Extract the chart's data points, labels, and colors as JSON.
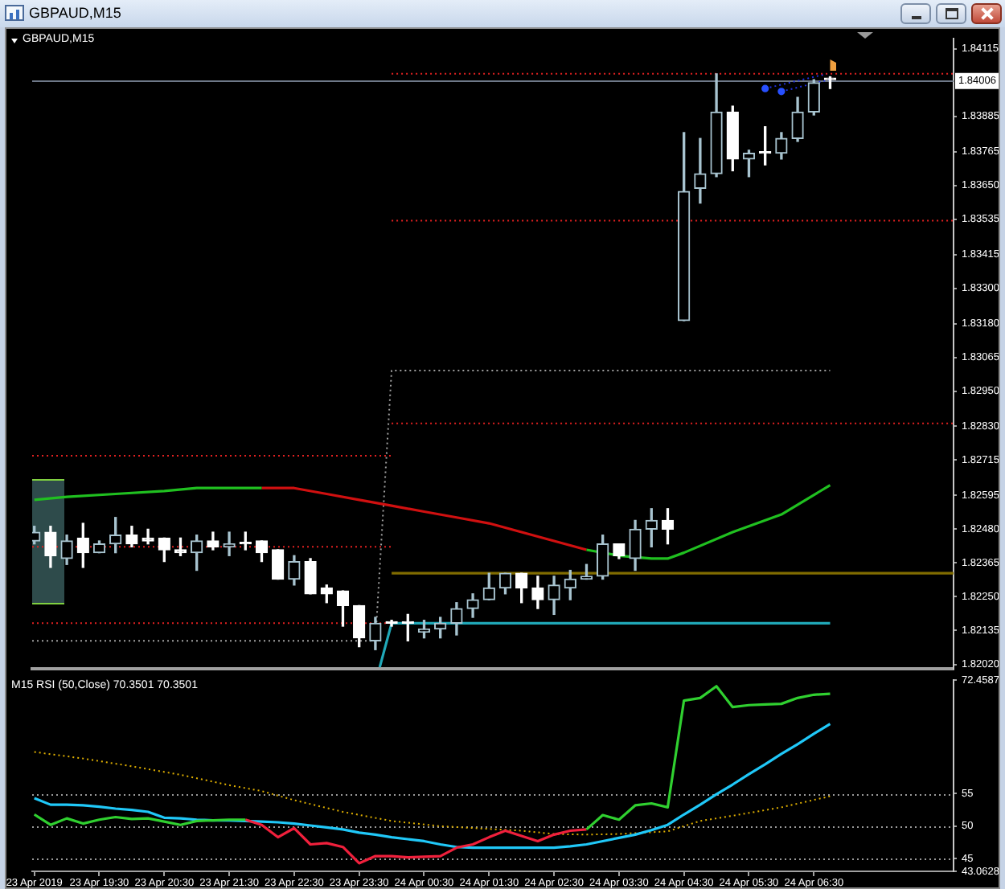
{
  "chart_data": [
    {
      "type": "candlestick",
      "title": "GBPAUD,M15",
      "subtitle": "GBPAUD,M15",
      "x": [
        "2019-04-23T18:30",
        "2019-04-23T18:45",
        "2019-04-23T19:00",
        "2019-04-23T19:15",
        "2019-04-23T19:30",
        "2019-04-23T19:45",
        "2019-04-23T20:00",
        "2019-04-23T20:15",
        "2019-04-23T20:30",
        "2019-04-23T20:45",
        "2019-04-23T21:00",
        "2019-04-23T21:15",
        "2019-04-23T21:30",
        "2019-04-23T21:45",
        "2019-04-23T22:00",
        "2019-04-23T22:15",
        "2019-04-23T22:30",
        "2019-04-23T22:45",
        "2019-04-23T23:00",
        "2019-04-23T23:15",
        "2019-04-23T23:30",
        "2019-04-23T23:45",
        "2019-04-24T00:00",
        "2019-04-24T00:15",
        "2019-04-24T00:30",
        "2019-04-24T00:45",
        "2019-04-24T01:00",
        "2019-04-24T01:15",
        "2019-04-24T01:30",
        "2019-04-24T01:45",
        "2019-04-24T02:00",
        "2019-04-24T02:15",
        "2019-04-24T02:30",
        "2019-04-24T02:45",
        "2019-04-24T03:00",
        "2019-04-24T03:15",
        "2019-04-24T03:30",
        "2019-04-24T03:45",
        "2019-04-24T04:00",
        "2019-04-24T04:15",
        "2019-04-24T04:30",
        "2019-04-24T04:45",
        "2019-04-24T05:00",
        "2019-04-24T05:15",
        "2019-04-24T05:30",
        "2019-04-24T05:45",
        "2019-04-24T06:00",
        "2019-04-24T06:15",
        "2019-04-24T06:30",
        "2019-04-24T06:45"
      ],
      "ohlc": [
        [
          1.8244,
          1.8249,
          1.8243,
          1.8247
        ],
        [
          1.8247,
          1.8249,
          1.8235,
          1.8239
        ],
        [
          1.8238,
          1.8246,
          1.8236,
          1.8244
        ],
        [
          1.8245,
          1.825,
          1.8235,
          1.824
        ],
        [
          1.824,
          1.8244,
          1.824,
          1.8243
        ],
        [
          1.8243,
          1.8252,
          1.824,
          1.8246
        ],
        [
          1.8246,
          1.8249,
          1.8242,
          1.8243
        ],
        [
          1.8245,
          1.8248,
          1.8243,
          1.8244
        ],
        [
          1.8245,
          1.8245,
          1.8237,
          1.8241
        ],
        [
          1.8241,
          1.8245,
          1.8239,
          1.824
        ],
        [
          1.824,
          1.8246,
          1.8234,
          1.8244
        ],
        [
          1.8244,
          1.8247,
          1.8241,
          1.8242
        ],
        [
          1.8242,
          1.8247,
          1.8239,
          1.8243
        ],
        [
          1.8243,
          1.8247,
          1.8241,
          1.8243
        ],
        [
          1.8244,
          1.8244,
          1.8237,
          1.824
        ],
        [
          1.8241,
          1.8241,
          1.8231,
          1.8231
        ],
        [
          1.8231,
          1.8239,
          1.8229,
          1.8237
        ],
        [
          1.8237,
          1.8238,
          1.8226,
          1.8226
        ],
        [
          1.8228,
          1.8229,
          1.8223,
          1.8226
        ],
        [
          1.8227,
          1.8227,
          1.8215,
          1.8222
        ],
        [
          1.8222,
          1.8222,
          1.8208,
          1.8211
        ],
        [
          1.821,
          1.8218,
          1.8207,
          1.8216
        ],
        [
          1.8216,
          1.8217,
          1.8215,
          1.8216
        ],
        [
          1.8216,
          1.8219,
          1.821,
          1.8216
        ],
        [
          1.8213,
          1.8217,
          1.8211,
          1.8214
        ],
        [
          1.8214,
          1.8218,
          1.8211,
          1.8216
        ],
        [
          1.8216,
          1.8223,
          1.8212,
          1.8221
        ],
        [
          1.8221,
          1.8226,
          1.8218,
          1.8224
        ],
        [
          1.8224,
          1.8233,
          1.8224,
          1.8228
        ],
        [
          1.8228,
          1.8233,
          1.8226,
          1.8233
        ],
        [
          1.8233,
          1.8233,
          1.8223,
          1.8228
        ],
        [
          1.8228,
          1.8232,
          1.8221,
          1.8224
        ],
        [
          1.8224,
          1.8232,
          1.8219,
          1.8229
        ],
        [
          1.8228,
          1.8234,
          1.8224,
          1.8231
        ],
        [
          1.8231,
          1.8236,
          1.8231,
          1.8232
        ],
        [
          1.8232,
          1.8246,
          1.8231,
          1.8243
        ],
        [
          1.8243,
          1.8243,
          1.8238,
          1.8239
        ],
        [
          1.8238,
          1.8251,
          1.8234,
          1.8248
        ],
        [
          1.8248,
          1.8255,
          1.8242,
          1.8251
        ],
        [
          1.8251,
          1.8255,
          1.8243,
          1.8248
        ],
        [
          1.8319,
          1.8383,
          1.8319,
          1.8363
        ],
        [
          1.8364,
          1.8381,
          1.8359,
          1.8369
        ],
        [
          1.8369,
          1.8403,
          1.8368,
          1.839
        ],
        [
          1.839,
          1.8392,
          1.837,
          1.8374
        ],
        [
          1.8374,
          1.8377,
          1.8368,
          1.8376
        ],
        [
          1.8376,
          1.8385,
          1.8372,
          1.8376
        ],
        [
          1.8376,
          1.8383,
          1.8374,
          1.8381
        ],
        [
          1.8381,
          1.8395,
          1.838,
          1.839
        ],
        [
          1.839,
          1.8401,
          1.8389,
          1.84
        ],
        [
          1.8401,
          1.8402,
          1.8398,
          1.8401
        ]
      ],
      "colors": [
        "#a8c4d0",
        "#ffffff",
        "#a8c4d0",
        "#ffffff",
        "#a8c4d0",
        "#a8c4d0",
        "#ffffff",
        "#ffffff",
        "#ffffff",
        "#ffffff",
        "#a8c4d0",
        "#ffffff",
        "#a8c4d0",
        "#ffffff",
        "#ffffff",
        "#ffffff",
        "#a8c4d0",
        "#ffffff",
        "#ffffff",
        "#ffffff",
        "#ffffff",
        "#a8c4d0",
        "#ffffff",
        "#ffffff",
        "#a8c4d0",
        "#a8c4d0",
        "#a8c4d0",
        "#a8c4d0",
        "#a8c4d0",
        "#a8c4d0",
        "#ffffff",
        "#ffffff",
        "#a8c4d0",
        "#a8c4d0",
        "#a8c4d0",
        "#a8c4d0",
        "#ffffff",
        "#a8c4d0",
        "#a8c4d0",
        "#ffffff",
        "#a8c4d0",
        "#a8c4d0",
        "#a8c4d0",
        "#ffffff",
        "#a8c4d0",
        "#ffffff",
        "#a8c4d0",
        "#a8c4d0",
        "#a8c4d0",
        "#ffffff"
      ],
      "xlim": [
        "2019-04-23T18:28",
        "2019-04-24T08:39"
      ],
      "ylim": [
        1.82005,
        1.8415
      ],
      "yticks": [
        1.84115,
        1.83885,
        1.83765,
        {
          "value": 1.8365,
          "label": "1.83650"
        },
        1.83535,
        1.83415,
        {
          "value": 1.833,
          "label": "1.83300"
        },
        {
          "value": 1.8318,
          "label": "1.83180"
        },
        1.83065,
        {
          "value": 1.8295,
          "label": "1.82950"
        },
        {
          "value": 1.8283,
          "label": "1.82830"
        },
        1.82715,
        1.82595,
        {
          "value": 1.8248,
          "label": "1.82480"
        },
        1.82365,
        {
          "value": 1.8225,
          "label": "1.82250"
        },
        1.82135,
        {
          "value": 1.8202,
          "label": "1.82020"
        }
      ],
      "tick_labels": "y",
      "ref_lines": [
        {
          "axis": "y",
          "value": 1.84006,
          "label": "1.84006",
          "color": "#6e7888"
        }
      ],
      "series": [
        {
          "type": "line",
          "color": "#20c020",
          "x": [
            "2019-04-23T18:30",
            "2019-04-23T19:00",
            "2019-04-23T19:45",
            "2019-04-23T20:30",
            "2019-04-23T21:00",
            "2019-04-23T21:45",
            "2019-04-23T22:00",
            "2019-04-24T00:30",
            "2019-04-24T03:00",
            "2019-04-24T03:30",
            "2019-04-24T04:00",
            "2019-04-24T04:15",
            "2019-04-24T04:30",
            "2019-04-24T05:15",
            "2019-04-24T06:00",
            "2019-04-24T06:45"
          ],
          "values": [
            1.8258,
            1.8259,
            1.826,
            1.8261,
            1.8262,
            1.8262,
            1.8262,
            null,
            1.8241,
            1.8239,
            1.8238,
            1.8238,
            1.824,
            1.8247,
            1.8253,
            1.8263
          ]
        },
        {
          "type": "line",
          "color": "#d01010",
          "x": [
            "2019-04-23T22:00",
            "2019-04-23T22:30",
            "2019-04-23T23:00",
            "2019-04-23T23:30",
            "2019-04-24T00:00",
            "2019-04-24T00:30",
            "2019-04-24T01:00",
            "2019-04-24T01:30",
            "2019-04-24T02:00",
            "2019-04-24T02:30",
            "2019-04-24T03:00"
          ],
          "values": [
            1.8262,
            1.8262,
            1.826,
            1.8258,
            1.8256,
            1.8254,
            1.8252,
            1.825,
            1.8247,
            1.8244,
            1.8241
          ]
        },
        {
          "type": "line",
          "color": "#e02020",
          "line_style": "dotted",
          "x": [
            "2019-04-24T00:00",
            "2019-04-24T08:39"
          ],
          "values": [
            1.8403,
            1.8403
          ]
        },
        {
          "type": "line",
          "color": "#e02020",
          "line_style": "dotted",
          "x": [
            "2019-04-24T00:00",
            "2019-04-24T08:39"
          ],
          "values": [
            1.8353,
            1.8353
          ]
        },
        {
          "type": "line",
          "color": "#e02020",
          "line_style": "dotted",
          "x": [
            "2019-04-24T00:00",
            "2019-04-24T08:39"
          ],
          "values": [
            1.8284,
            1.8284
          ]
        },
        {
          "type": "line",
          "color": "#e02020",
          "line_style": "dotted",
          "x": [
            "2019-04-23T18:28",
            "2019-04-24T00:00"
          ],
          "values": [
            1.8273,
            1.8273
          ]
        },
        {
          "type": "line",
          "color": "#e02020",
          "line_style": "dotted",
          "x": [
            "2019-04-23T18:28",
            "2019-04-24T00:00"
          ],
          "values": [
            1.8242,
            1.8242
          ]
        },
        {
          "type": "line",
          "color": "#e02020",
          "line_style": "dotted",
          "x": [
            "2019-04-23T18:28",
            "2019-04-24T00:00"
          ],
          "values": [
            1.8216,
            1.8216
          ]
        },
        {
          "type": "line",
          "color": "#a0a0a0",
          "line_style": "dotted",
          "x": [
            "2019-04-23T18:28",
            "2019-04-23T23:45",
            "2019-04-24T00:00",
            "2019-04-24T06:45"
          ],
          "values": [
            1.821,
            1.821,
            1.8302,
            1.8302
          ]
        },
        {
          "type": "line",
          "color": "#806c00",
          "x": [
            "2019-04-24T00:00",
            "2019-04-24T08:39"
          ],
          "values": [
            1.8233,
            1.8233
          ]
        },
        {
          "type": "line",
          "color": "#20a8b8",
          "x": [
            "2019-04-23T23:49",
            "2019-04-24T00:00",
            "2019-04-24T06:45"
          ],
          "values": [
            1.8201,
            1.8216,
            1.8216
          ]
        },
        {
          "type": "line",
          "color": "#2030e0",
          "line_style": "dotted",
          "x": [
            "2019-04-24T05:45",
            "2019-04-24T06:42"
          ],
          "values": [
            1.8398,
            1.8403
          ]
        },
        {
          "type": "line",
          "color": "#2030e0",
          "line_style": "dotted",
          "x": [
            "2019-04-24T06:00",
            "2019-04-24T06:44"
          ],
          "values": [
            1.8397,
            1.8401
          ]
        },
        {
          "type": "scatter",
          "color": "#2850ff",
          "marker": "circle",
          "x": [
            "2019-04-24T05:45",
            "2019-04-24T06:00"
          ],
          "values": [
            1.8398,
            1.8397
          ]
        }
      ]
    },
    {
      "type": "line",
      "title": "M15 RSI (50,Close) 70.3501 70.3501",
      "x": [
        "2019-04-23T18:30",
        "2019-04-23T18:45",
        "2019-04-23T19:00",
        "2019-04-23T19:15",
        "2019-04-23T19:30",
        "2019-04-23T19:45",
        "2019-04-23T20:00",
        "2019-04-23T20:15",
        "2019-04-23T20:30",
        "2019-04-23T20:45",
        "2019-04-23T21:00",
        "2019-04-23T21:15",
        "2019-04-23T21:30",
        "2019-04-23T21:45",
        "2019-04-23T22:00",
        "2019-04-23T22:15",
        "2019-04-23T22:30",
        "2019-04-23T22:45",
        "2019-04-23T23:00",
        "2019-04-23T23:15",
        "2019-04-23T23:30",
        "2019-04-23T23:45",
        "2019-04-24T00:00",
        "2019-04-24T00:15",
        "2019-04-24T00:30",
        "2019-04-24T00:45",
        "2019-04-24T01:00",
        "2019-04-24T01:15",
        "2019-04-24T01:30",
        "2019-04-24T01:45",
        "2019-04-24T02:00",
        "2019-04-24T02:15",
        "2019-04-24T02:30",
        "2019-04-24T02:45",
        "2019-04-24T03:00",
        "2019-04-24T03:15",
        "2019-04-24T03:30",
        "2019-04-24T03:45",
        "2019-04-24T04:00",
        "2019-04-24T04:15",
        "2019-04-24T04:30",
        "2019-04-24T04:45",
        "2019-04-24T05:00",
        "2019-04-24T05:15",
        "2019-04-24T05:30",
        "2019-04-24T05:45",
        "2019-04-24T06:00",
        "2019-04-24T06:15",
        "2019-04-24T06:30",
        "2019-04-24T06:45"
      ],
      "xlim": [
        "2019-04-23T18:28",
        "2019-04-24T08:39"
      ],
      "xticks": [
        {
          "value": "2019-04-23T18:30",
          "label": "23 Apr 2019"
        },
        {
          "value": "2019-04-23T19:30",
          "label": "23 Apr 19:30"
        },
        {
          "value": "2019-04-23T20:30",
          "label": "23 Apr 20:30"
        },
        {
          "value": "2019-04-23T21:30",
          "label": "23 Apr 21:30"
        },
        {
          "value": "2019-04-23T22:30",
          "label": "23 Apr 22:30"
        },
        {
          "value": "2019-04-23T23:30",
          "label": "23 Apr 23:30"
        },
        {
          "value": "2019-04-24T00:30",
          "label": "24 Apr 00:30"
        },
        {
          "value": "2019-04-24T01:30",
          "label": "24 Apr 01:30"
        },
        {
          "value": "2019-04-24T02:30",
          "label": "24 Apr 02:30"
        },
        {
          "value": "2019-04-24T03:30",
          "label": "24 Apr 03:30"
        },
        {
          "value": "2019-04-24T04:30",
          "label": "24 Apr 04:30"
        },
        {
          "value": "2019-04-24T05:30",
          "label": "24 Apr 05:30"
        },
        {
          "value": "2019-04-24T06:30",
          "label": "24 Apr 06:30"
        }
      ],
      "ylim": [
        43.0628,
        72.4587
      ],
      "yticks": [
        72.4587,
        55,
        50,
        45,
        43.0628
      ],
      "ref_lines": [
        {
          "axis": "y",
          "value": 55,
          "color": "#9a9a9a",
          "line_style": "dotted"
        },
        {
          "axis": "y",
          "value": 50,
          "color": "#9a9a9a",
          "line_style": "dotted"
        },
        {
          "axis": "y",
          "value": 45,
          "color": "#9a9a9a",
          "line_style": "dotted"
        }
      ],
      "series": [
        {
          "color": "#30d030",
          "values": [
            51.8,
            50.2,
            51.2,
            50.4,
            51.0,
            51.4,
            51.1,
            51.2,
            50.7,
            50.2,
            50.8,
            50.9,
            51.0,
            51.0,
            null,
            null,
            null,
            null,
            null,
            null,
            null,
            null,
            null,
            null,
            null,
            null,
            null,
            null,
            null,
            null,
            null,
            null,
            null,
            null,
            49.5,
            51.7,
            51.0,
            53.2,
            53.5,
            52.9,
            69.3,
            69.7,
            71.5,
            68.3,
            68.6,
            68.7,
            68.8,
            69.7,
            70.2,
            70.3501
          ]
        },
        {
          "color": "#f0203c",
          "values": [
            null,
            null,
            null,
            null,
            null,
            null,
            null,
            null,
            null,
            null,
            null,
            null,
            null,
            51.0,
            50.2,
            48.3,
            49.7,
            47.2,
            47.4,
            46.8,
            44.3,
            45.4,
            45.4,
            45.2,
            45.3,
            45.4,
            46.7,
            47.2,
            48.3,
            49.3,
            48.5,
            47.7,
            48.7,
            49.3,
            49.5,
            null,
            null,
            null,
            null,
            null,
            null,
            null,
            null,
            null,
            null,
            null,
            null,
            null,
            null,
            null
          ]
        },
        {
          "color": "#20c8f8",
          "values": [
            54.3,
            53.3,
            53.3,
            53.2,
            53.0,
            52.7,
            52.5,
            52.2,
            51.3,
            51.2,
            51.0,
            50.9,
            50.9,
            50.8,
            50.7,
            50.6,
            50.4,
            50.1,
            49.8,
            49.5,
            49.0,
            48.7,
            48.3,
            48.0,
            47.7,
            47.2,
            46.8,
            46.7,
            46.7,
            46.7,
            46.7,
            46.7,
            46.7,
            46.9,
            47.2,
            47.7,
            48.2,
            48.7,
            49.4,
            50.2,
            51.8,
            53.3,
            54.9,
            56.4,
            58.0,
            59.5,
            61.1,
            62.6,
            64.2,
            65.7
          ]
        },
        {
          "color": "#e0b000",
          "line_style": "dotted",
          "x": [
            "2019-04-23T18:30",
            "2019-04-23T19:15",
            "2019-04-23T20:00",
            "2019-04-23T20:45",
            "2019-04-23T21:30",
            "2019-04-23T22:00",
            "2019-04-23T22:30",
            "2019-04-23T23:15",
            "2019-04-24T00:00",
            "2019-04-24T00:45",
            "2019-04-24T02:00",
            "2019-04-24T02:30",
            "2019-04-24T03:00",
            "2019-04-24T03:30",
            "2019-04-24T04:15",
            "2019-04-24T04:45",
            "2019-04-24T05:15",
            "2019-04-24T06:00",
            "2019-04-24T06:45"
          ],
          "values": [
            61.4,
            60.4,
            59.2,
            57.9,
            56.3,
            55.4,
            54.0,
            52.2,
            50.8,
            50.0,
            49.3,
            48.8,
            48.7,
            48.8,
            49.2,
            50.8,
            51.6,
            52.9,
            54.6
          ]
        }
      ]
    }
  ]
}
